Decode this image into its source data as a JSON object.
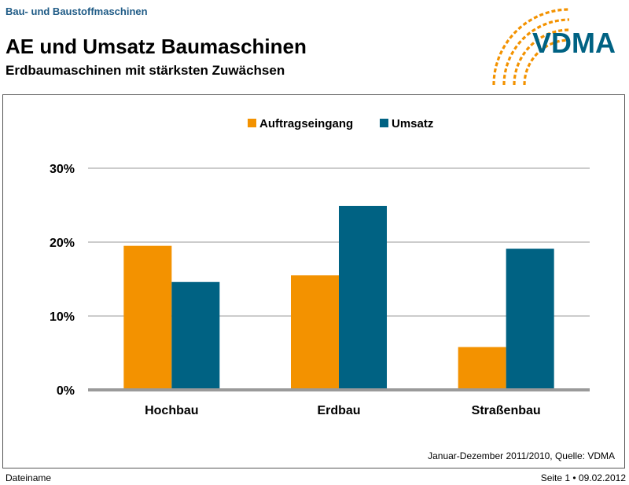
{
  "header": {
    "section": "Bau- und Baustoffmaschinen",
    "title": "AE und Umsatz Baumaschinen",
    "subtitle": "Erdbaumaschinen mit stärksten Zuwächsen",
    "logo_text": "VDMA"
  },
  "chart_data": {
    "type": "bar",
    "categories": [
      "Hochbau",
      "Erdbau",
      "Straßenbau"
    ],
    "series": [
      {
        "name": "Auftragseingang",
        "color": "#f39200",
        "values": [
          19.5,
          15.5,
          5.8
        ]
      },
      {
        "name": "Umsatz",
        "color": "#006283",
        "values": [
          14.6,
          24.9,
          19.1
        ]
      }
    ],
    "ylim": [
      0,
      30
    ],
    "yticks": [
      0,
      10,
      20,
      30
    ],
    "ytick_labels": [
      "0%",
      "10%",
      "20%",
      "30%"
    ],
    "grid": true,
    "legend": "top-center"
  },
  "source": "Januar-Dezember 2011/2010, Quelle: VDMA",
  "footer": {
    "left": "Dateiname",
    "right": "Seite 1 • 09.02.2012"
  },
  "colors": {
    "logo_orange": "#f39200",
    "logo_blue": "#006283",
    "header_blue": "#1f5b86"
  }
}
